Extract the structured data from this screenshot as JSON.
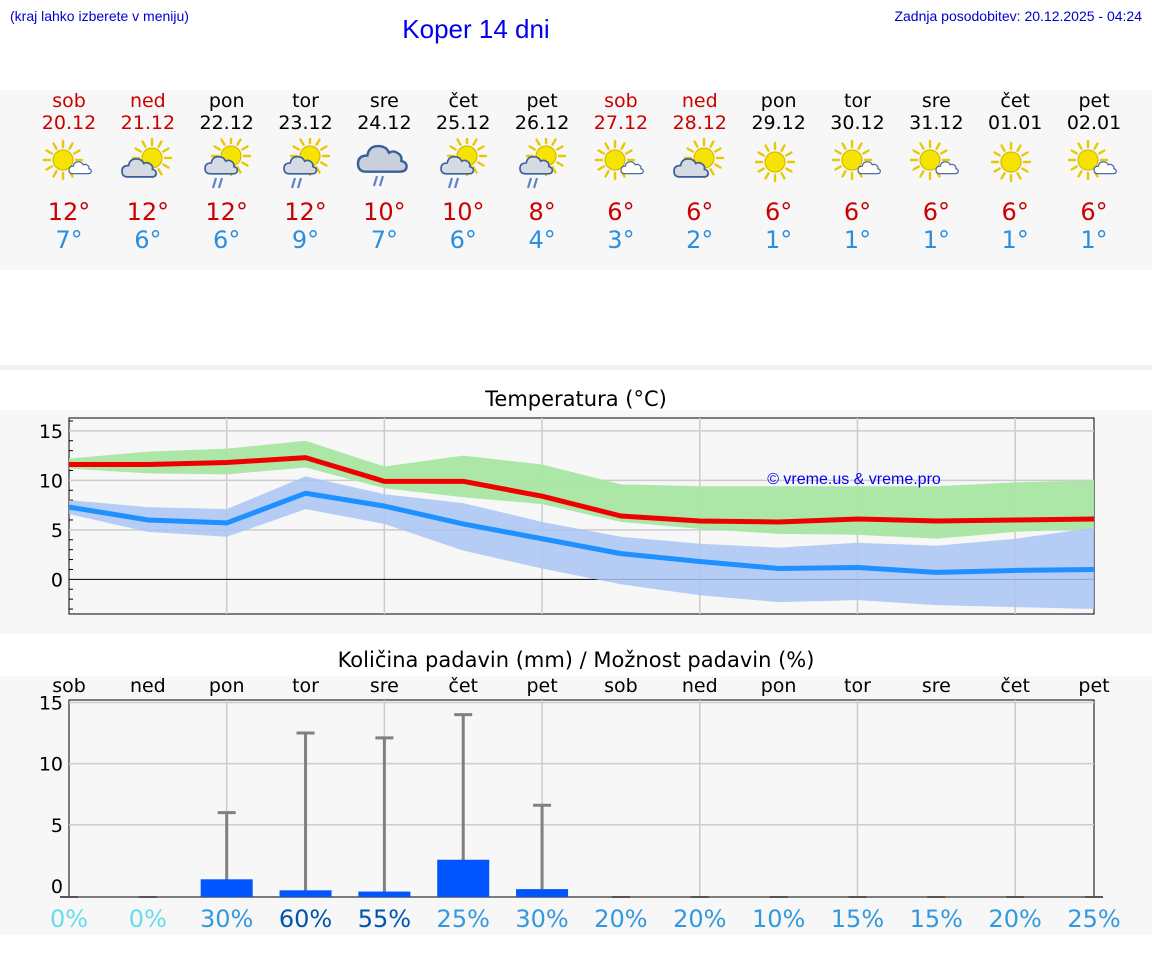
{
  "header": {
    "menu_hint": "(kraj lahko izberete v meniju)",
    "title": "Koper 14 dni",
    "last_update": "Zadnja posodobitev: 20.12.2025 - 04:24"
  },
  "days": [
    {
      "name": "sob",
      "date": "20.12",
      "weekend": true,
      "icon": "sun-cloud-icon",
      "tmax": "12°",
      "tmin": "7°"
    },
    {
      "name": "ned",
      "date": "21.12",
      "weekend": true,
      "icon": "cloud-sun-icon",
      "tmax": "12°",
      "tmin": "6°"
    },
    {
      "name": "pon",
      "date": "22.12",
      "weekend": false,
      "icon": "sun-cloud-rain-icon",
      "tmax": "12°",
      "tmin": "6°"
    },
    {
      "name": "tor",
      "date": "23.12",
      "weekend": false,
      "icon": "sun-cloud-rain-icon",
      "tmax": "12°",
      "tmin": "9°"
    },
    {
      "name": "sre",
      "date": "24.12",
      "weekend": false,
      "icon": "cloud-rain-icon",
      "tmax": "10°",
      "tmin": "7°"
    },
    {
      "name": "čet",
      "date": "25.12",
      "weekend": false,
      "icon": "sun-cloud-rain-icon",
      "tmax": "10°",
      "tmin": "6°"
    },
    {
      "name": "pet",
      "date": "26.12",
      "weekend": false,
      "icon": "sun-cloud-rain-icon",
      "tmax": "8°",
      "tmin": "4°"
    },
    {
      "name": "sob",
      "date": "27.12",
      "weekend": true,
      "icon": "sun-cloud-icon",
      "tmax": "6°",
      "tmin": "3°"
    },
    {
      "name": "ned",
      "date": "28.12",
      "weekend": true,
      "icon": "cloud-sun-icon",
      "tmax": "6°",
      "tmin": "2°"
    },
    {
      "name": "pon",
      "date": "29.12",
      "weekend": false,
      "icon": "sun-icon",
      "tmax": "6°",
      "tmin": "1°"
    },
    {
      "name": "tor",
      "date": "30.12",
      "weekend": false,
      "icon": "sun-cloud-icon",
      "tmax": "6°",
      "tmin": "1°"
    },
    {
      "name": "sre",
      "date": "31.12",
      "weekend": false,
      "icon": "sun-cloud-icon",
      "tmax": "6°",
      "tmin": "1°"
    },
    {
      "name": "čet",
      "date": "01.01",
      "weekend": false,
      "icon": "sun-icon",
      "tmax": "6°",
      "tmin": "1°"
    },
    {
      "name": "pet",
      "date": "02.01",
      "weekend": false,
      "icon": "sun-cloud-icon",
      "tmax": "6°",
      "tmin": "1°"
    }
  ],
  "colors": {
    "tmax_line": "#ee0000",
    "tmin_line": "#1e90ff",
    "tmax_band": "#a8e6a3",
    "tmin_band": "#a9c4f5",
    "overlap_band": "#7ec8a8",
    "precip_bar": "#0055ff",
    "error_bar": "#808080",
    "watermark": "#0000ee"
  },
  "chart_data": [
    {
      "type": "line",
      "title": "Temperatura (°C)",
      "watermark": "© vreme.us & vreme.pro",
      "xlabel": "",
      "ylabel": "",
      "ylim": [
        -3.5,
        16.3
      ],
      "yticks": [
        0,
        5,
        10,
        15
      ],
      "series": [
        {
          "name": "Tmax",
          "values": [
            11.6,
            11.6,
            11.8,
            12.3,
            9.9,
            9.9,
            8.4,
            6.4,
            5.9,
            5.8,
            6.1,
            5.9,
            6.0,
            6.1
          ],
          "band_low": [
            11.2,
            10.7,
            10.6,
            11.3,
            9.2,
            8.3,
            7.6,
            5.8,
            5.1,
            4.6,
            4.5,
            4.1,
            4.8,
            5.1
          ],
          "band_high": [
            12.2,
            12.9,
            13.2,
            14.0,
            11.4,
            12.5,
            11.6,
            9.6,
            9.4,
            9.4,
            9.4,
            9.4,
            9.8,
            10.0
          ]
        },
        {
          "name": "Tmin",
          "values": [
            7.3,
            6.0,
            5.7,
            8.7,
            7.4,
            5.6,
            4.1,
            2.6,
            1.8,
            1.1,
            1.2,
            0.7,
            0.9,
            1.0
          ],
          "band_low": [
            6.6,
            4.8,
            4.3,
            7.1,
            5.6,
            2.9,
            1.1,
            -0.5,
            -1.6,
            -2.3,
            -2.1,
            -2.6,
            -2.8,
            -3.0
          ],
          "band_high": [
            8.0,
            7.3,
            7.1,
            10.4,
            8.6,
            7.7,
            5.8,
            4.3,
            3.6,
            3.2,
            3.7,
            3.4,
            4.1,
            5.2
          ]
        }
      ]
    },
    {
      "type": "bar",
      "title": "Količina padavin (mm) / Možnost padavin (%)",
      "categories": [
        "sob",
        "ned",
        "pon",
        "tor",
        "sre",
        "čet",
        "pet",
        "sob",
        "ned",
        "pon",
        "tor",
        "sre",
        "čet",
        "pet"
      ],
      "values": [
        0,
        0,
        1.2,
        0.3,
        0.2,
        2.8,
        0.4,
        0,
        0,
        0,
        0,
        0,
        0,
        0
      ],
      "error_max": [
        0,
        0,
        6.0,
        12.5,
        12.1,
        14.0,
        6.6,
        0,
        0,
        0,
        0,
        0,
        0,
        0
      ],
      "probability": [
        "0%",
        "0%",
        "30%",
        "60%",
        "55%",
        "25%",
        "30%",
        "20%",
        "20%",
        "10%",
        "15%",
        "15%",
        "20%",
        "25%"
      ],
      "probability_colors": [
        "#66ddee",
        "#66ddee",
        "#3399dd",
        "#0055aa",
        "#0055aa",
        "#3399dd",
        "#3399dd",
        "#3399dd",
        "#3399dd",
        "#3399dd",
        "#3399dd",
        "#3399dd",
        "#3399dd",
        "#3399dd"
      ],
      "ylim": [
        -0.9,
        15.2
      ],
      "yticks": [
        0,
        5,
        10,
        15
      ]
    }
  ]
}
